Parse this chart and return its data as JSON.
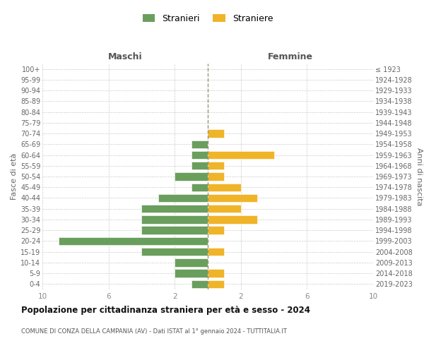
{
  "age_groups": [
    "0-4",
    "5-9",
    "10-14",
    "15-19",
    "20-24",
    "25-29",
    "30-34",
    "35-39",
    "40-44",
    "45-49",
    "50-54",
    "55-59",
    "60-64",
    "65-69",
    "70-74",
    "75-79",
    "80-84",
    "85-89",
    "90-94",
    "95-99",
    "100+"
  ],
  "birth_years": [
    "2019-2023",
    "2014-2018",
    "2009-2013",
    "2004-2008",
    "1999-2003",
    "1994-1998",
    "1989-1993",
    "1984-1988",
    "1979-1983",
    "1974-1978",
    "1969-1973",
    "1964-1968",
    "1959-1963",
    "1954-1958",
    "1949-1953",
    "1944-1948",
    "1939-1943",
    "1934-1938",
    "1929-1933",
    "1924-1928",
    "≤ 1923"
  ],
  "maschi": [
    1,
    2,
    2,
    4,
    9,
    4,
    4,
    4,
    3,
    1,
    2,
    1,
    1,
    1,
    0,
    0,
    0,
    0,
    0,
    0,
    0
  ],
  "femmine": [
    1,
    1,
    0,
    1,
    0,
    1,
    3,
    2,
    3,
    2,
    1,
    1,
    4,
    0,
    1,
    0,
    0,
    0,
    0,
    0,
    0
  ],
  "male_color": "#6a9e5c",
  "female_color": "#f0b429",
  "bg_color": "#ffffff",
  "grid_color": "#cccccc",
  "title": "Popolazione per cittadinanza straniera per età e sesso - 2024",
  "subtitle": "COMUNE DI CONZA DELLA CAMPANIA (AV) - Dati ISTAT al 1° gennaio 2024 - TUTTITALIA.IT",
  "legend_stranieri": "Stranieri",
  "legend_straniere": "Straniere",
  "label_maschi": "Maschi",
  "label_femmine": "Femmine",
  "ylabel_left": "Fasce di età",
  "ylabel_right": "Anni di nascita",
  "xlim": 10,
  "xticks": [
    10,
    6,
    2
  ],
  "xticks_f": [
    2,
    6,
    10
  ]
}
